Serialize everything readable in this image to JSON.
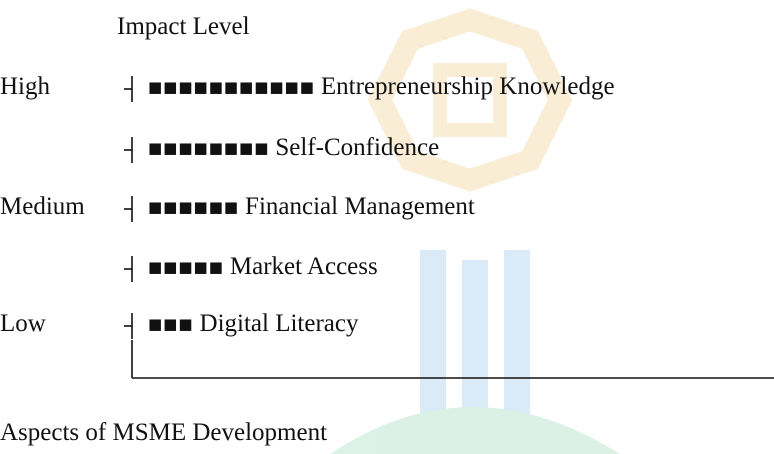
{
  "axis_title": "Impact Level",
  "rows": [
    {
      "level": "High",
      "bar": "■■■■■■■■■■■",
      "label": "Entrepreneurship Knowledge"
    },
    {
      "bar": "■■■■■■■■",
      "label": "Self-Confidence"
    },
    {
      "level": "Medium",
      "bar": "■■■■■■",
      "label": "Financial Management"
    },
    {
      "bar": "■■■■■",
      "label": "Market Access"
    },
    {
      "level": "Low",
      "bar": "■■■",
      "label": "Digital Literacy"
    }
  ],
  "x_axis_title": "Aspects of MSME Development"
}
